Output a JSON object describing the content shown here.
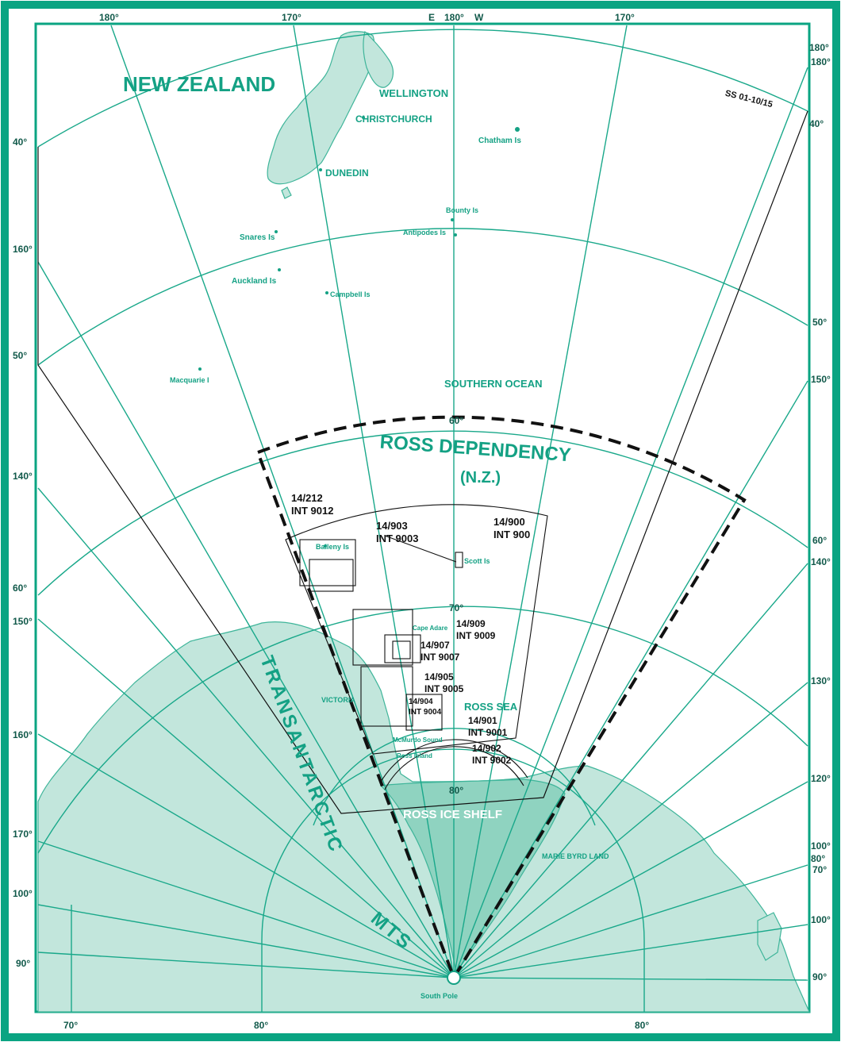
{
  "map": {
    "border_color": "#0aa482",
    "land_color": "#c2e6dc",
    "shelf_color": "#8fd3c0",
    "label_color": "#14a184",
    "top_labels": [
      "180°",
      "170°",
      "E",
      "180°",
      "W",
      "170°",
      "180°"
    ],
    "bottom_labels": [
      "70°",
      "80°",
      "80°"
    ],
    "left_labels": [
      "40°",
      "160°",
      "50°",
      "140°",
      "60°",
      "150°",
      "160°",
      "170°",
      "100°",
      "90°"
    ],
    "right_labels": [
      "180°",
      "40°",
      "50°",
      "150°",
      "60°",
      "140°",
      "130°",
      "120°",
      "100°",
      "80°",
      "70°",
      "100°",
      "90°"
    ],
    "inner_lat_labels": [
      "60°",
      "70°",
      "80°"
    ],
    "places": {
      "new_zealand": "NEW ZEALAND",
      "wellington": "WELLINGTON",
      "christchurch": "CHRISTCHURCH",
      "dunedin": "DUNEDIN",
      "chatham": "Chatham Is",
      "bounty": "Bounty Is",
      "antipodes": "Antipodes Is",
      "snares": "Snares Is",
      "auckland": "Auckland Is",
      "campbell": "Campbell Is",
      "macquarie": "Macquarie I",
      "southern_ocean": "SOUTHERN OCEAN",
      "ross_dep_1": "ROSS DEPENDENCY",
      "ross_dep_2": "(N.Z.)",
      "balleny": "Balleny Is",
      "scott": "Scott Is",
      "cape_adare": "Cape Adare",
      "victoria_land": "VICTORIA",
      "ross_sea": "ROSS SEA",
      "mcmurdo": "McMurdo Sound",
      "ross_island": "Ross Island",
      "ross_ice_shelf": "ROSS ICE SHELF",
      "mtns_1": "TRANSANTARCTIC",
      "mtns_2": "MTS",
      "south_pole": "South Pole",
      "marie_byrd": "MARIE BYRD LAND"
    },
    "sheets": {
      "frame_code": "SS 01-10/15",
      "s1": "14/212",
      "s1b": "INT 9012",
      "s2": "14/903",
      "s2b": "INT 9003",
      "s3": "14/900",
      "s3b": "INT 900",
      "s4": "14/909",
      "s4b": "INT 9009",
      "s5": "14/907",
      "s5b": "INT 9007",
      "s6": "14/905",
      "s6b": "INT 9005",
      "s7": "14/904",
      "s7b": "INT 9004",
      "s8": "14/901",
      "s8b": "INT 9001",
      "s9": "14/902",
      "s9b": "INT 9002"
    }
  }
}
